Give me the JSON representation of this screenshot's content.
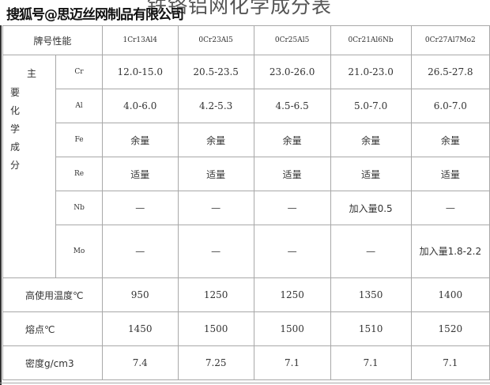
{
  "title": "铁铬铝网化学成分表",
  "watermark": "搜狐号@思迈丝网制品有限公司",
  "table": {
    "header_label": "牌号性能",
    "grades": [
      "1Cr13Al4",
      "0Cr23Al5",
      "0Cr25Al5",
      "0Cr21Al6Nb",
      "0Cr27Al7Mo2"
    ],
    "composition_label_parts": [
      "主",
      "要化学成分"
    ],
    "composition_rows": [
      {
        "element": "Cr",
        "values": [
          "12.0-15.0",
          "20.5-23.5",
          "23.0-26.0",
          "21.0-23.0",
          "26.5-27.8"
        ]
      },
      {
        "element": "Al",
        "values": [
          "4.0-6.0",
          "4.2-5.3",
          "4.5-6.5",
          "5.0-7.0",
          "6.0-7.0"
        ]
      },
      {
        "element": "Fe",
        "values": [
          "余量",
          "余量",
          "余量",
          "余量",
          "余量"
        ]
      },
      {
        "element": "Re",
        "values": [
          "适量",
          "适量",
          "适量",
          "适量",
          "适量"
        ]
      },
      {
        "element": "Nb",
        "values": [
          "—",
          "—",
          "—",
          "加入量0.5",
          "—"
        ]
      },
      {
        "element": "Mo",
        "values": [
          "—",
          "—",
          "—",
          "—",
          "加入量1.8-2.2"
        ]
      }
    ],
    "property_rows": [
      {
        "label": "高使用温度℃",
        "values": [
          "950",
          "1250",
          "1250",
          "1350",
          "1400"
        ]
      },
      {
        "label": "熔点℃",
        "values": [
          "1450",
          "1500",
          "1500",
          "1510",
          "1520"
        ]
      },
      {
        "label": "密度g/cm3",
        "values": [
          "7.4",
          "7.25",
          "7.1",
          "7.1",
          "7.1"
        ]
      }
    ]
  }
}
